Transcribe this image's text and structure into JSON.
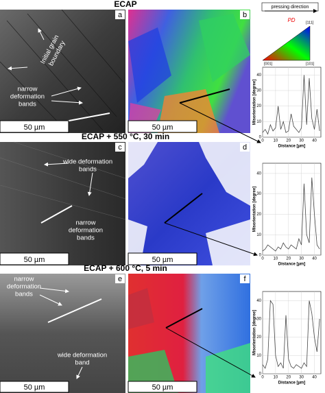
{
  "rows": [
    {
      "title": "ECAP",
      "left_label": "a",
      "right_label": "b",
      "annotations": [
        [
          "Initial grain",
          "boundary"
        ],
        [
          "narrow",
          "deformation",
          "bands"
        ]
      ],
      "scale_left": "50 µm",
      "scale_right": "50 µm"
    },
    {
      "title": "ECAP + 550 °C, 30 min",
      "left_label": "c",
      "right_label": "d",
      "annotations": [
        [
          "wide deformation",
          "bands"
        ],
        [
          "narrow",
          "deformation",
          "bands"
        ]
      ],
      "scale_left": "50 µm",
      "scale_right": "50 µm"
    },
    {
      "title": "ECAP + 600 °C, 5 min",
      "left_label": "e",
      "right_label": "f",
      "annotations": [
        [
          "narrow",
          "deformation",
          "bands"
        ],
        [
          "wide deformation",
          "band"
        ]
      ],
      "scale_left": "50 µm",
      "scale_right": "50 µm"
    }
  ],
  "legend": {
    "title": "pressing direction",
    "axis": "PD",
    "poles": [
      "[001]",
      "[101]",
      "[111]"
    ]
  },
  "chart_data": [
    {
      "type": "line",
      "y_label": "Misorientation [degree]",
      "x_label": "Distance [µm]",
      "color": "#444",
      "x": [
        0,
        2,
        4,
        6,
        8,
        10,
        12,
        14,
        16,
        18,
        20,
        22,
        24,
        26,
        28,
        30,
        32,
        34,
        36,
        38,
        40,
        42,
        44
      ],
      "values": [
        3,
        5,
        2,
        8,
        4,
        6,
        20,
        5,
        10,
        3,
        4,
        15,
        7,
        5,
        3,
        6,
        40,
        8,
        38,
        12,
        5,
        18,
        4
      ],
      "xlim": [
        0,
        45
      ],
      "ylim": [
        0,
        45
      ],
      "xticks": [
        0,
        10,
        20,
        30,
        40
      ],
      "yticks": [
        0,
        10,
        20,
        30,
        40
      ]
    },
    {
      "type": "line",
      "y_label": "Misorientation [degree]",
      "x_label": "Distance [µm]",
      "color": "#444",
      "x": [
        0,
        2,
        4,
        6,
        8,
        10,
        12,
        14,
        16,
        18,
        20,
        22,
        24,
        26,
        28,
        30,
        32,
        34,
        36,
        38,
        40,
        42,
        44
      ],
      "values": [
        2,
        3,
        5,
        4,
        3,
        2,
        4,
        3,
        6,
        4,
        3,
        5,
        4,
        3,
        8,
        5,
        35,
        10,
        6,
        38,
        20,
        5,
        3
      ],
      "xlim": [
        0,
        45
      ],
      "ylim": [
        0,
        45
      ],
      "xticks": [
        0,
        10,
        20,
        30,
        40
      ],
      "yticks": [
        0,
        10,
        20,
        30,
        40
      ]
    },
    {
      "type": "line",
      "y_label": "Misorientation [degree]",
      "x_label": "Distance [µm]",
      "color": "#444",
      "x": [
        0,
        2,
        4,
        6,
        8,
        10,
        12,
        14,
        16,
        18,
        20,
        22,
        24,
        26,
        28,
        30,
        32,
        34,
        36,
        38,
        40,
        42,
        44
      ],
      "values": [
        5,
        3,
        8,
        40,
        38,
        10,
        4,
        6,
        3,
        32,
        8,
        4,
        3,
        5,
        4,
        3,
        6,
        4,
        40,
        33,
        20,
        12,
        30
      ],
      "xlim": [
        0,
        45
      ],
      "ylim": [
        0,
        45
      ],
      "xticks": [
        0,
        10,
        20,
        30,
        40
      ],
      "yticks": [
        0,
        10,
        20,
        30,
        40
      ]
    }
  ]
}
